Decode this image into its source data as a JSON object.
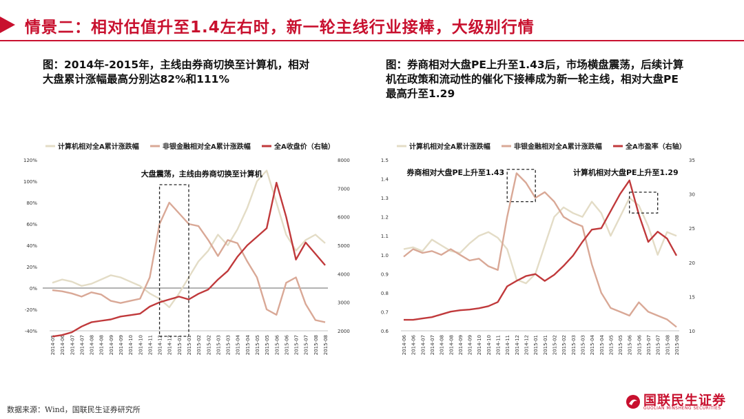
{
  "header": {
    "title": "情景二：相对估值升至1.4左右时，新一轮主线行业接棒，大级别行情"
  },
  "left_caption": "图：2014年-2015年，主线由券商切换至计算机，相对大盘累计涨幅最高分别达82%和111%",
  "right_caption": "图：券商相对大盘PE上升至1.43后，市场横盘震荡，后续计算机在政策和流动性的催化下接棒成为新一轮主线，相对大盘PE最高升至1.29",
  "footer": {
    "source": "数据来源：Wind，国联民生证券研究所",
    "logo_cn": "国联民生证券",
    "logo_en": "GUOLIAN MINSHENG SECURITIES"
  },
  "colors": {
    "brand": "#c8102e",
    "series_computer": "#e3dcc6",
    "series_broker": "#d9a896",
    "series_market": "#c0393b"
  },
  "chart_data": [
    {
      "type": "line",
      "x": [
        "2014-05",
        "2014-06",
        "2014-07",
        "2014-07",
        "2014-08",
        "2014-08",
        "2014-09",
        "2014-09",
        "2014-10",
        "2014-10",
        "2014-11",
        "2014-12",
        "2014-12",
        "2015-01",
        "2015-01",
        "2015-02",
        "2015-02",
        "2015-03",
        "2015-03",
        "2015-04",
        "2015-04",
        "2015-05",
        "2015-05",
        "2015-06",
        "2015-06",
        "2015-07",
        "2015-07",
        "2015-08",
        "2015-08"
      ],
      "series": [
        {
          "name": "计算机相对全A累计涨跌幅",
          "axis": "left",
          "values": [
            5,
            8,
            6,
            2,
            4,
            8,
            12,
            10,
            6,
            2,
            -5,
            -10,
            -18,
            -5,
            10,
            25,
            35,
            50,
            40,
            55,
            75,
            100,
            110,
            80,
            50,
            35,
            45,
            50,
            42
          ]
        },
        {
          "name": "非银金融相对全A累计涨跌幅",
          "axis": "left",
          "values": [
            -2,
            -3,
            -5,
            -8,
            -4,
            -6,
            -12,
            -14,
            -12,
            -10,
            10,
            60,
            80,
            70,
            60,
            58,
            45,
            30,
            45,
            42,
            25,
            10,
            -20,
            -25,
            5,
            10,
            -15,
            -30,
            -32
          ]
        },
        {
          "name": "全A收盘价（右轴）",
          "axis": "right",
          "values": [
            1800,
            1850,
            1950,
            2150,
            2300,
            2350,
            2400,
            2500,
            2550,
            2600,
            2850,
            3000,
            3100,
            3200,
            3100,
            3300,
            3450,
            3800,
            4100,
            4600,
            5000,
            5300,
            5600,
            7200,
            6000,
            4500,
            5100,
            4700,
            4300
          ]
        }
      ],
      "y_left": {
        "range": [
          -40,
          120
        ],
        "ticks": [
          "120%",
          "100%",
          "80%",
          "60%",
          "40%",
          "20%",
          "0%",
          "-20%",
          "-40%"
        ]
      },
      "y_right": {
        "range": [
          2000,
          8000
        ],
        "ticks": [
          "8000",
          "7000",
          "6000",
          "5000",
          "4000",
          "3000",
          "2000"
        ]
      },
      "x_ticks": [
        "2014-05",
        "2014-06",
        "2014-07",
        "2014-07",
        "2014-08",
        "2014-08",
        "2014-09",
        "2014-09",
        "2014-10",
        "2014-10",
        "2014-11",
        "2014-12",
        "2014-12",
        "2015-01",
        "2015-01",
        "2015-02",
        "2015-02",
        "2015-03",
        "2015-03",
        "2015-04",
        "2015-04",
        "2015-05",
        "2015-05",
        "2015-06",
        "2015-06",
        "2015-07",
        "2015-07",
        "2015-08",
        "2015-08"
      ],
      "annotations": [
        {
          "text": "大盘震荡，主线由券商切换至计算机",
          "box_from": 11,
          "box_to": 14
        }
      ],
      "legend_position": "top"
    },
    {
      "type": "line",
      "x": [
        "2014-06",
        "2014-06",
        "2014-07",
        "2014-07",
        "2014-08",
        "2014-08",
        "2014-09",
        "2014-09",
        "2014-10",
        "2014-10",
        "2014-11",
        "2014-11",
        "2014-12",
        "2014-12",
        "2015-01",
        "2015-01",
        "2015-02",
        "2015-02",
        "2015-03",
        "2015-03",
        "2015-04",
        "2015-04",
        "2015-05",
        "2015-05",
        "2015-06",
        "2015-06",
        "2015-07",
        "2015-07",
        "2015-08",
        "2015-08"
      ],
      "series": [
        {
          "name": "计算机相对全A累计涨跌幅",
          "axis": "left",
          "values": [
            1.03,
            1.04,
            1.02,
            1.08,
            1.05,
            1.02,
            1.01,
            1.06,
            1.1,
            1.12,
            1.09,
            1.03,
            0.87,
            0.85,
            0.9,
            1.05,
            1.2,
            1.25,
            1.22,
            1.2,
            1.28,
            1.22,
            1.1,
            1.2,
            1.3,
            1.26,
            1.15,
            1.0,
            1.12,
            1.1
          ]
        },
        {
          "name": "非银金融相对全A累计涨跌幅",
          "axis": "left",
          "values": [
            0.99,
            1.03,
            1.01,
            1.02,
            1.0,
            1.03,
            1.0,
            0.97,
            0.98,
            0.94,
            0.92,
            1.2,
            1.43,
            1.38,
            1.3,
            1.33,
            1.28,
            1.2,
            1.17,
            1.15,
            0.95,
            0.8,
            0.72,
            0.7,
            0.68,
            0.75,
            0.7,
            0.68,
            0.66,
            0.62
          ]
        },
        {
          "name": "全A市盈率（右轴）",
          "axis": "right",
          "values": [
            11.6,
            11.6,
            11.8,
            12.0,
            12.4,
            12.8,
            13.0,
            13.1,
            13.3,
            13.6,
            14.2,
            16.5,
            17.3,
            18.0,
            18.3,
            17.3,
            18.2,
            19.5,
            21.0,
            23.0,
            24.8,
            25.0,
            27.5,
            30.0,
            32.0,
            27.0,
            23.0,
            24.5,
            23.5,
            21.0
          ]
        }
      ],
      "y_left": {
        "range": [
          0.6,
          1.5
        ],
        "ticks": [
          "1.5",
          "1.4",
          "1.3",
          "1.2",
          "1.1",
          "1.0",
          "0.9",
          "0.8",
          "0.7",
          "0.6"
        ]
      },
      "y_right": {
        "range": [
          10,
          35
        ],
        "ticks": [
          "35",
          "30",
          "25",
          "20",
          "15",
          "10"
        ]
      },
      "x_ticks": [
        "2014-06",
        "2014-06",
        "2014-07",
        "2014-07",
        "2014-08",
        "2014-08",
        "2014-09",
        "2014-09",
        "2014-10",
        "2014-10",
        "2014-11",
        "2014-11",
        "2014-12",
        "2014-12",
        "2015-01",
        "2015-01",
        "2015-02",
        "2015-02",
        "2015-03",
        "2015-03",
        "2015-04",
        "2015-04",
        "2015-05",
        "2015-05",
        "2015-06",
        "2015-06",
        "2015-07",
        "2015-07",
        "2015-08",
        "2015-08"
      ],
      "annotations": [
        {
          "text": "券商相对大盘PE上升至1.43",
          "box_from": 11,
          "box_to": 14,
          "box_y": [
            1.28,
            1.45
          ]
        },
        {
          "text": "计算机相对大盘PE上升至1.29",
          "box_from": 24,
          "box_to": 27,
          "box_y": [
            1.22,
            1.33
          ]
        }
      ],
      "legend_position": "top"
    }
  ]
}
